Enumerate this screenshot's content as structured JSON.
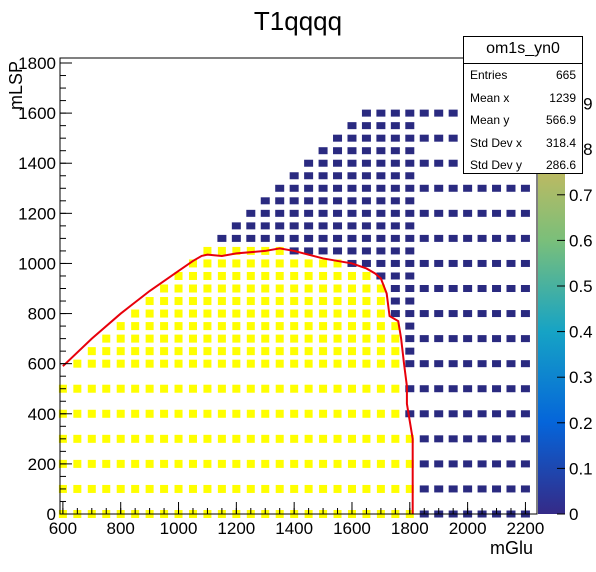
{
  "chart_data": {
    "type": "heatmap",
    "title": "T1qqqq",
    "xlabel": "mGlu",
    "ylabel": "mLSP",
    "xlim": [
      590,
      2240
    ],
    "ylim": [
      0,
      1820
    ],
    "xticks": [
      600,
      800,
      1000,
      1200,
      1400,
      1600,
      1800,
      2000,
      2200
    ],
    "yticks": [
      0,
      200,
      400,
      600,
      800,
      1000,
      1200,
      1400,
      1600,
      1800
    ],
    "colorbar": {
      "ticks": [
        0,
        0.1,
        0.2,
        0.3,
        0.4,
        0.5,
        0.6,
        0.7,
        0.8,
        0.9
      ],
      "range": [
        0,
        1
      ],
      "stops": [
        "#352a87",
        "#0565da",
        "#16a3c5",
        "#7abf7a",
        "#d2b85a",
        "#f9fb0e"
      ]
    },
    "cell_colors": {
      "excluded": "#ffff00",
      "allowed": "#2a2a80"
    },
    "stats": {
      "name": "om1s_yn0",
      "rows": [
        {
          "label": "Entries",
          "value": "665"
        },
        {
          "label": "Mean x",
          "value": "1239"
        },
        {
          "label": "Mean y",
          "value": "566.9"
        },
        {
          "label": "Std Dev x",
          "value": "318.4"
        },
        {
          "label": "Std Dev y",
          "value": "286.6"
        }
      ]
    },
    "contour": {
      "color": "#e8000b",
      "points": [
        [
          600,
          590
        ],
        [
          700,
          700
        ],
        [
          800,
          800
        ],
        [
          900,
          890
        ],
        [
          1000,
          970
        ],
        [
          1050,
          1010
        ],
        [
          1080,
          1030
        ],
        [
          1100,
          1035
        ],
        [
          1150,
          1030
        ],
        [
          1200,
          1040
        ],
        [
          1300,
          1050
        ],
        [
          1350,
          1060
        ],
        [
          1400,
          1050
        ],
        [
          1500,
          1020
        ],
        [
          1550,
          1010
        ],
        [
          1600,
          1000
        ],
        [
          1650,
          980
        ],
        [
          1680,
          960
        ],
        [
          1700,
          940
        ],
        [
          1720,
          880
        ],
        [
          1730,
          790
        ],
        [
          1760,
          770
        ],
        [
          1770,
          700
        ],
        [
          1780,
          600
        ],
        [
          1790,
          510
        ],
        [
          1790,
          440
        ],
        [
          1800,
          370
        ],
        [
          1810,
          300
        ],
        [
          1810,
          0
        ]
      ]
    }
  }
}
